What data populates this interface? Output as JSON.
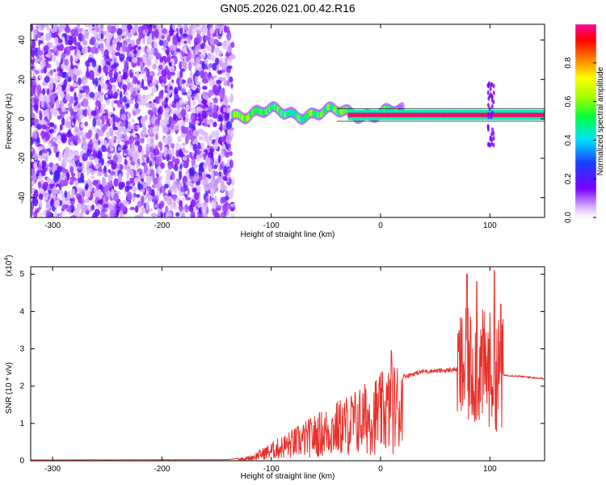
{
  "title": "GN05.2026.021.00.42.R16",
  "colors": {
    "trace": "#e8302a",
    "axis": "#000000",
    "background": "#ffffff"
  },
  "chart_data": [
    {
      "type": "heatmap",
      "xlabel": "Height of straight line (km)",
      "ylabel": "Frequency (Hz)",
      "xlim": [
        -320,
        150
      ],
      "ylim": [
        -50,
        48
      ],
      "xticks": [
        -300,
        -200,
        -100,
        0,
        100
      ],
      "yticks": [
        -40,
        -20,
        0,
        20,
        40
      ],
      "colorbar": {
        "label": "Normalized spectral amplitude",
        "range": [
          0,
          1
        ],
        "ticks": [
          "0.0",
          "0.2",
          "0.4",
          "0.6",
          "0.8"
        ],
        "colormap": "hsv-like (white, violet, blue, cyan, green, yellow, orange, red, magenta)"
      },
      "features": [
        {
          "name": "noise region",
          "x_range": [
            -320,
            -135
          ],
          "y_range": [
            -50,
            48
          ],
          "amplitude": 0.15
        },
        {
          "name": "signal track",
          "x_range": [
            -135,
            150
          ],
          "frequency_center": 2,
          "amplitude": 0.9
        }
      ]
    },
    {
      "type": "line",
      "xlabel": "Height of straight line (km)",
      "ylabel": "SNR (10 * v/v)",
      "multiplier": "(x10",
      "multiplier_exp": "4",
      "multiplier_close": ")",
      "xlim": [
        -320,
        150
      ],
      "ylim": [
        0,
        5.2
      ],
      "xticks": [
        -300,
        -200,
        -100,
        0,
        100
      ],
      "yticks": [
        0,
        1,
        2,
        3,
        4,
        5
      ],
      "envelope_x": [
        -320,
        -140,
        -120,
        -100,
        -80,
        -60,
        -40,
        -20,
        0,
        10,
        20,
        40,
        60,
        70,
        80,
        90,
        100,
        105,
        110,
        120,
        150
      ],
      "envelope_y": [
        0.02,
        0.03,
        0.1,
        0.4,
        0.7,
        1.0,
        1.3,
        1.6,
        1.9,
        2.1,
        2.25,
        2.4,
        2.42,
        2.45,
        2.5,
        2.5,
        2.45,
        2.4,
        2.3,
        2.28,
        2.2
      ],
      "peaks": [
        {
          "x": 10,
          "y": 2.95
        },
        {
          "x": 79,
          "y": 5.0
        },
        {
          "x": 88,
          "y": 4.8
        },
        {
          "x": 104,
          "y": 5.1
        },
        {
          "x": 110,
          "y": 4.2
        }
      ]
    }
  ]
}
